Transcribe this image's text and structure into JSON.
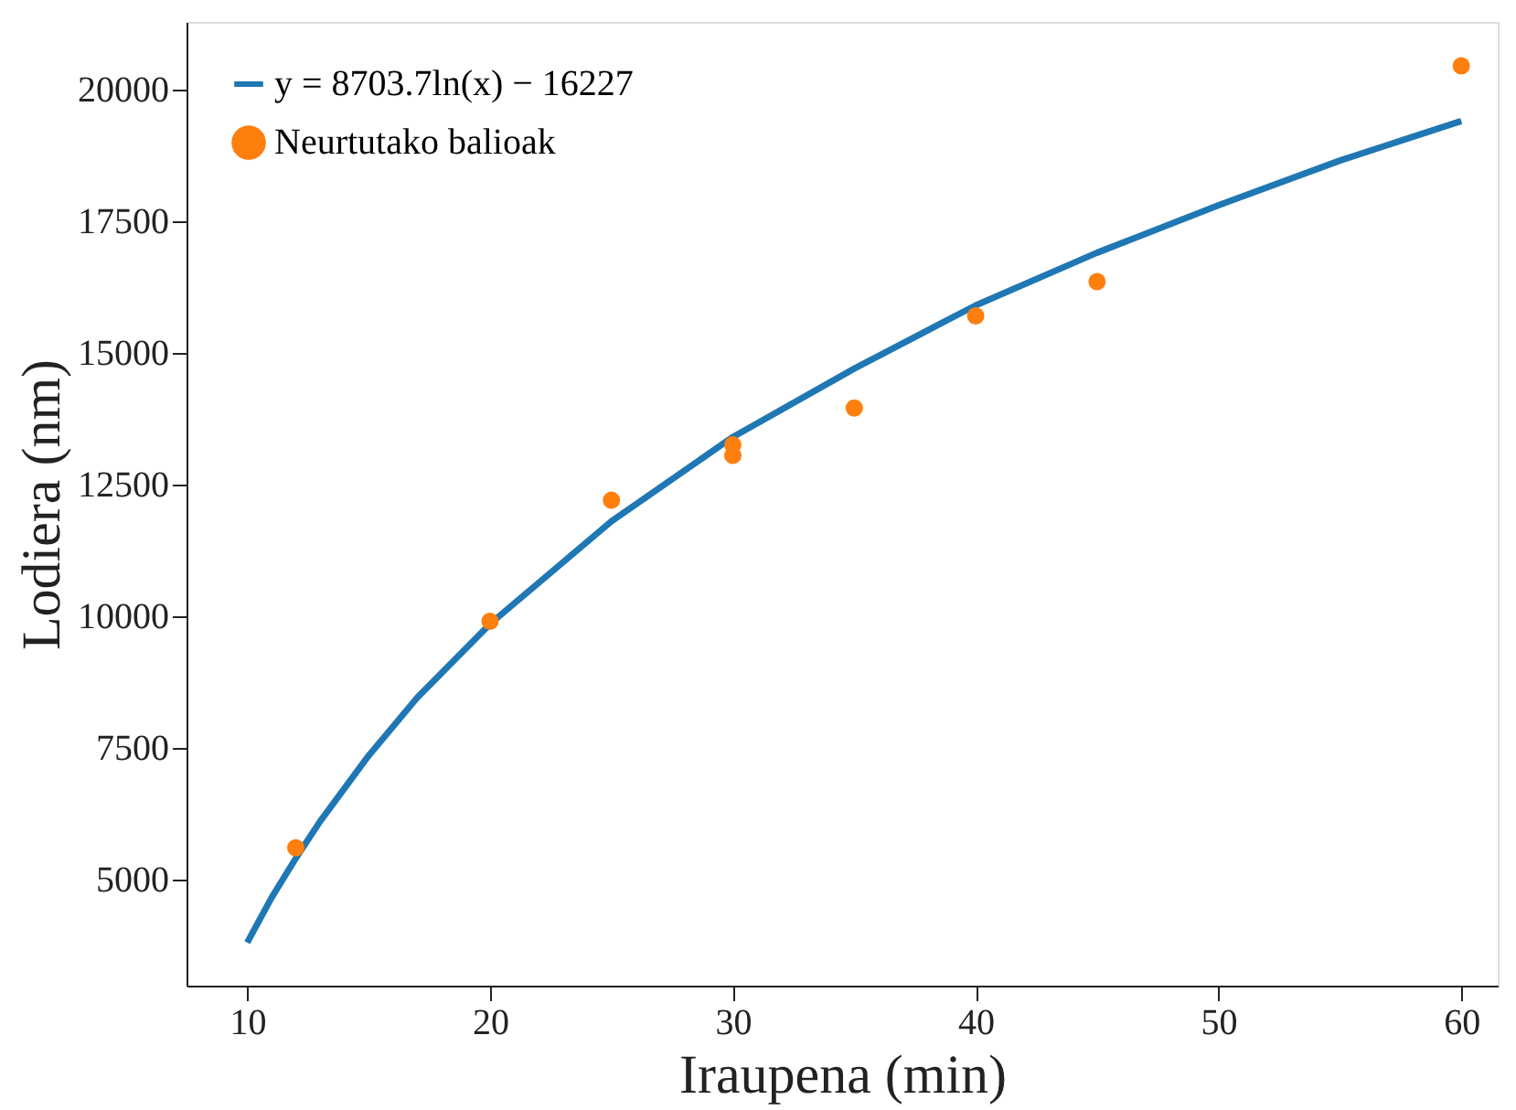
{
  "chart_data": {
    "type": "scatter",
    "xlabel": "Iraupena (min)",
    "ylabel": "Lodiera (nm)",
    "xlim": [
      7.5,
      61.5
    ],
    "ylim": [
      2982,
      21282
    ],
    "xticks": [
      10,
      20,
      30,
      40,
      50,
      60
    ],
    "yticks": [
      5000,
      7500,
      10000,
      12500,
      15000,
      17500,
      20000
    ],
    "grid": false,
    "legend": "top left",
    "series": [
      {
        "name": "y = 8703.7ln(x) − 16227",
        "type": "line",
        "color": "#1f77b4",
        "marker": "none",
        "line_style": "solid",
        "x": [
          10,
          11,
          12,
          13,
          15,
          17,
          20,
          25,
          30,
          35,
          40,
          45,
          50,
          55,
          60
        ],
        "values": [
          3800,
          4650,
          5400,
          6100,
          7350,
          8450,
          9850,
          11800,
          13400,
          14700,
          15900,
          16900,
          17800,
          18650,
          19400
        ]
      },
      {
        "name": "Neurtutako balioak",
        "color": "#ff7f0e",
        "marker": "circle",
        "x": [
          12,
          20,
          25,
          30,
          30,
          35,
          40,
          45,
          60
        ],
        "values": [
          5600,
          9900,
          12200,
          13250,
          13050,
          13950,
          15700,
          16350,
          20450
        ]
      }
    ]
  }
}
